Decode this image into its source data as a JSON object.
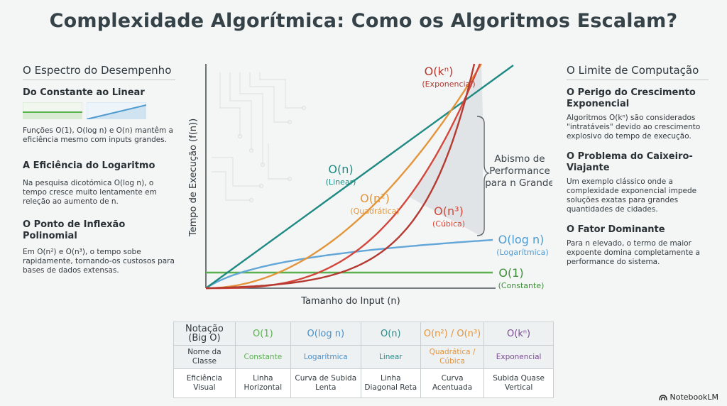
{
  "title": "Complexidade Algorítmica: Como os Algoritmos Escalam?",
  "left": {
    "heading": "O Espectro do Desempenho",
    "sections": [
      {
        "title": "Do Constante ao Linear",
        "text": "Funções O(1), O(log n) e O(n) mantêm a eficiência mesmo com inputs grandes."
      },
      {
        "title": "A Eficiência do Logaritmo",
        "text": "Na pesquisa dicotómica O(log n), o tempo cresce muito lentamente em releção ao aumento de n."
      },
      {
        "title": "O Ponto de Inflexão Polinomial",
        "text": "Em O(n²) e O(n³), o tempo sobe rapidamente, tornando-os custosos para bases de dados extensas."
      }
    ]
  },
  "right": {
    "heading": "O Limite de Computação",
    "sections": [
      {
        "title": "O Perigo do Crescimento Exponencial",
        "text": "Algoritmos O(kⁿ) são considerados \"intratáveis\" devido ao crescimento explosivo do tempo de execução."
      },
      {
        "title": "O Problema do Caixeiro-Viajante",
        "text": "Um exemplo clássico onde a complexidade exponencial impede soluções exatas para grandes quantidades de cidades."
      },
      {
        "title": "O Fator Dominante",
        "text": "Para n elevado, o termo de maior expoente domina completamente a performance do sistema."
      }
    ]
  },
  "chart_data": {
    "type": "line",
    "xlabel": "Tamanho do Input (n)",
    "ylabel": "Tempo de Execução (f(n))",
    "grid": false,
    "series": [
      {
        "name": "O(1)",
        "sub": "(Constante)",
        "color": "#5aaf4f"
      },
      {
        "name": "O(log n)",
        "sub": "(Logarítmica)",
        "color": "#63a7d8"
      },
      {
        "name": "O(n)",
        "sub": "(Linear)",
        "color": "#1f8a82"
      },
      {
        "name": "O(n²)",
        "sub": "(Quadrática)",
        "color": "#e3953b"
      },
      {
        "name": "O(n³)",
        "sub": "(Cúbica)",
        "color": "#d2473c"
      },
      {
        "name": "O(kⁿ)",
        "sub": "(Exponencial)",
        "color": "#b43a32"
      }
    ],
    "annotation": "Abismo de Performance para n Grande"
  },
  "table": {
    "rows": [
      [
        "Notação (Big O)",
        "O(1)",
        "O(log n)",
        "O(n)",
        "O(n²) / O(n³)",
        "O(kⁿ)"
      ],
      [
        "Nome da Classe",
        "Constante",
        "Logarítmica",
        "Linear",
        "Quadrática / Cúbica",
        "Exponencial"
      ],
      [
        "Eficiência Visual",
        "Linha Horizontal",
        "Curva de Subida Lenta",
        "Linha Diagonal Reta",
        "Curva Acentuada",
        "Subida Quase Vertical"
      ]
    ],
    "colors": [
      "#5aaf4f",
      "#4a90c8",
      "#2a8a86",
      "#e3953b",
      "#7a4a92"
    ]
  },
  "brand": "NotebookLM"
}
